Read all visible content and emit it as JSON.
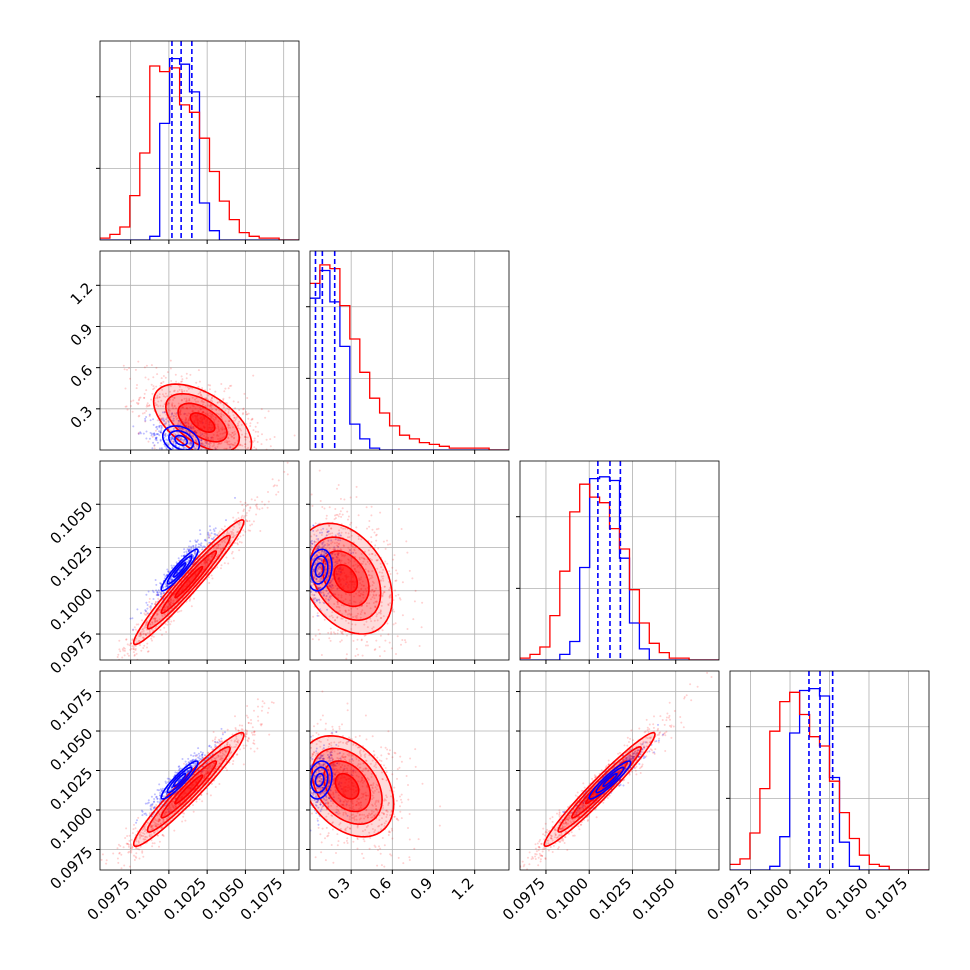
{
  "chart_data": {
    "type": "corner",
    "colors": {
      "series_a": "#0000ff",
      "series_b": "#ff0000",
      "grid": "#b0b0b0",
      "axis": "#000000"
    },
    "series": [
      {
        "color": "#0000ff",
        "quantiles": {
          "p0": [
            0.1002,
            0.1008,
            0.1015
          ],
          "p1": [
            0.04,
            0.09,
            0.18
          ],
          "p2": [
            0.1005,
            0.1012,
            0.1018
          ],
          "p3": [
            0.1012,
            0.1019,
            0.1027
          ]
        },
        "hist": {
          "p0": {
            "range": [
              0.0955,
              0.1085
            ],
            "counts": [
              0,
              0,
              0,
              0,
              0,
              0.02,
              0.63,
              0.98,
              0.95,
              0.8,
              0.2,
              0.05,
              0,
              0,
              0,
              0,
              0,
              0,
              0,
              0
            ]
          },
          "p1": {
            "range": [
              0,
              1.45
            ],
            "counts": [
              0.82,
              0.97,
              0.8,
              0.56,
              0.14,
              0.06,
              0.01,
              0,
              0,
              0,
              0,
              0,
              0,
              0,
              0,
              0,
              0,
              0,
              0,
              0
            ]
          },
          "p2": {
            "range": [
              0.096,
              0.1075
            ],
            "counts": [
              0,
              0,
              0,
              0,
              0.03,
              0.1,
              0.5,
              0.98,
              0.99,
              0.97,
              0.55,
              0.2,
              0.06,
              0,
              0,
              0,
              0,
              0,
              0,
              0
            ]
          },
          "p3": {
            "range": [
              0.0962,
              0.1088
            ],
            "counts": [
              0,
              0,
              0,
              0,
              0.02,
              0.18,
              0.74,
              0.97,
              0.98,
              0.94,
              0.5,
              0.15,
              0.02,
              0,
              0,
              0,
              0,
              0,
              0,
              0
            ]
          }
        }
      },
      {
        "color": "#ff0000",
        "quantiles": {},
        "hist": {
          "p0": {
            "range": [
              0.0955,
              0.1085
            ],
            "counts": [
              0.01,
              0.03,
              0.07,
              0.24,
              0.47,
              0.94,
              0.91,
              0.93,
              0.73,
              0.69,
              0.55,
              0.37,
              0.21,
              0.11,
              0.04,
              0.02,
              0.01,
              0.01,
              0,
              0
            ]
          },
          "p1": {
            "range": [
              0,
              1.45
            ],
            "counts": [
              0.9,
              1.0,
              0.98,
              0.78,
              0.6,
              0.42,
              0.28,
              0.2,
              0.13,
              0.08,
              0.06,
              0.04,
              0.03,
              0.02,
              0.01,
              0.01,
              0.01,
              0.01,
              0,
              0
            ]
          },
          "p2": {
            "range": [
              0.096,
              0.1075
            ],
            "counts": [
              0.01,
              0.03,
              0.07,
              0.24,
              0.48,
              0.8,
              0.95,
              0.88,
              0.85,
              0.71,
              0.6,
              0.38,
              0.2,
              0.09,
              0.04,
              0.01,
              0.01,
              0,
              0,
              0
            ]
          },
          "p3": {
            "range": [
              0.0962,
              0.1088
            ],
            "counts": [
              0.03,
              0.06,
              0.2,
              0.44,
              0.75,
              0.91,
              0.96,
              0.84,
              0.72,
              0.67,
              0.48,
              0.31,
              0.17,
              0.08,
              0.03,
              0.02,
              0,
              0,
              0,
              0
            ]
          }
        }
      }
    ],
    "params": [
      {
        "key": "p0",
        "range": [
          0.0955,
          0.1085
        ],
        "ticks": [
          0.0975,
          0.1,
          0.1025,
          0.105,
          0.1075
        ],
        "tick_labels": [
          "0.0975",
          "0.1000",
          "0.1025",
          "0.1050",
          "0.1075"
        ]
      },
      {
        "key": "p1",
        "range": [
          0,
          1.45
        ],
        "ticks": [
          0.3,
          0.6,
          0.9,
          1.2
        ],
        "tick_labels": [
          "0.3",
          "0.6",
          "0.9",
          "1.2"
        ]
      },
      {
        "key": "p2",
        "range": [
          0.096,
          0.1075
        ],
        "ticks": [
          0.0975,
          0.1,
          0.1025,
          0.105
        ],
        "tick_labels": [
          "0.0975",
          "0.1000",
          "0.1025",
          "0.1050"
        ]
      },
      {
        "key": "p3",
        "range": [
          0.0962,
          0.1088
        ],
        "ticks": [
          0.0975,
          0.1,
          0.1025,
          0.105,
          0.1075
        ],
        "tick_labels": [
          "0.0975",
          "0.1000",
          "0.1025",
          "0.1050",
          "0.1075"
        ]
      }
    ],
    "pairs": [
      {
        "row": 1,
        "col": 0,
        "b": {
          "center": [
            0.1022,
            0.2
          ],
          "sigma": [
            0.0016,
            0.14
          ],
          "rho": -0.55
        },
        "a": {
          "center": [
            0.1008,
            0.07
          ],
          "sigma": [
            0.0008,
            0.07
          ],
          "rho": -0.3
        }
      },
      {
        "row": 2,
        "col": 0,
        "b": {
          "center": [
            0.1013,
            0.1005
          ],
          "sigma": [
            0.0018,
            0.0018
          ],
          "rho": 0.97
        },
        "a": {
          "center": [
            0.1007,
            0.1012
          ],
          "sigma": [
            0.0008,
            0.0008
          ],
          "rho": 0.93
        }
      },
      {
        "row": 2,
        "col": 1,
        "b": {
          "center": [
            0.26,
            0.1007
          ],
          "sigma": [
            0.17,
            0.0016
          ],
          "rho": -0.35
        },
        "a": {
          "center": [
            0.07,
            0.1012
          ],
          "sigma": [
            0.06,
            0.0008
          ],
          "rho": 0.2
        }
      },
      {
        "row": 3,
        "col": 0,
        "b": {
          "center": [
            0.1013,
            0.1013
          ],
          "sigma": [
            0.0018,
            0.0018
          ],
          "rho": 0.96
        },
        "a": {
          "center": [
            0.1007,
            0.1019
          ],
          "sigma": [
            0.0008,
            0.0008
          ],
          "rho": 0.92
        }
      },
      {
        "row": 3,
        "col": 1,
        "b": {
          "center": [
            0.27,
            0.1015
          ],
          "sigma": [
            0.17,
            0.0016
          ],
          "rho": -0.35
        },
        "a": {
          "center": [
            0.07,
            0.1019
          ],
          "sigma": [
            0.06,
            0.0008
          ],
          "rho": 0.2
        }
      },
      {
        "row": 3,
        "col": 2,
        "b": {
          "center": [
            0.1006,
            0.1013
          ],
          "sigma": [
            0.0016,
            0.0018
          ],
          "rho": 0.97
        },
        "a": {
          "center": [
            0.1012,
            0.1019
          ],
          "sigma": [
            0.0008,
            0.0008
          ],
          "rho": 0.93
        }
      }
    ],
    "grid": true
  }
}
